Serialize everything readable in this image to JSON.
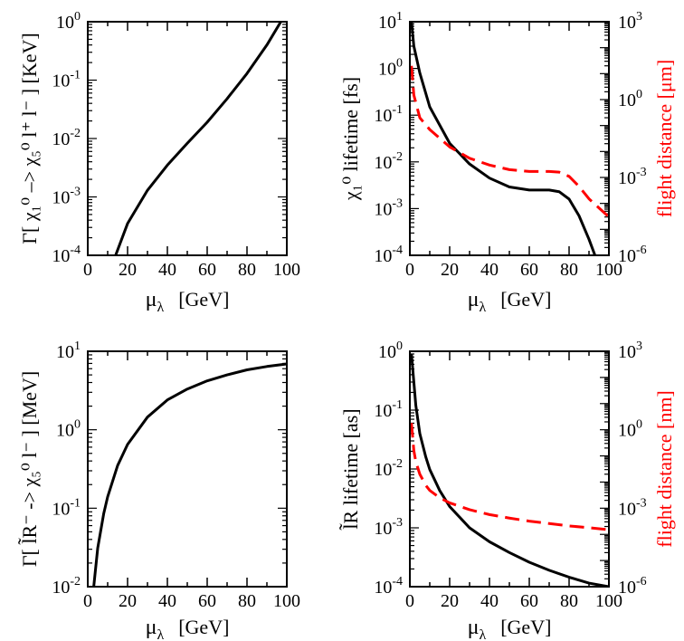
{
  "chart_data": [
    {
      "id": "tl",
      "type": "line",
      "ylabel": "Γ[ χ₁⁰ –> χ₅⁰ l⁺ l⁻ ]  [KeV]",
      "xlabel": "μλ [GeV]",
      "x_axis": {
        "label_main": "μ",
        "label_sub": "λ",
        "label_unit": "[GeV]",
        "range": [
          0,
          100
        ],
        "ticks": [
          0,
          20,
          40,
          60,
          80,
          100
        ],
        "tick_labels": [
          "0",
          "20",
          "40",
          "60",
          "80",
          "100"
        ]
      },
      "y_axis": {
        "scale": "log",
        "range": [
          0.0001,
          1
        ],
        "ticks": [
          0.0001,
          0.001,
          0.01,
          0.1,
          1
        ],
        "tick_labels": [
          {
            "base": "10",
            "exp": "-4"
          },
          {
            "base": "10",
            "exp": "-3"
          },
          {
            "base": "10",
            "exp": "-2"
          },
          {
            "base": "10",
            "exp": "-1"
          },
          {
            "base": "10",
            "exp": "0"
          }
        ]
      },
      "series": [
        {
          "name": "decay width",
          "color": "#000000",
          "dashed": false,
          "x": [
            14,
            20,
            30,
            40,
            50,
            60,
            70,
            80,
            90,
            97
          ],
          "values": [
            0.0001,
            0.00035,
            0.0013,
            0.0035,
            0.0083,
            0.019,
            0.048,
            0.13,
            0.4,
            1.0
          ]
        }
      ]
    },
    {
      "id": "tr",
      "type": "line",
      "ylabel": "χ₁⁰ lifetime [fs]",
      "xlabel": "μλ [GeV]",
      "x_axis": {
        "label_main": "μ",
        "label_sub": "λ",
        "label_unit": "[GeV]",
        "range": [
          0,
          100
        ],
        "ticks": [
          0,
          20,
          40,
          60,
          80,
          100
        ],
        "tick_labels": [
          "0",
          "20",
          "40",
          "60",
          "80",
          "100"
        ]
      },
      "y_axis": {
        "scale": "log",
        "range": [
          0.0001,
          10
        ],
        "ticks": [
          0.0001,
          0.001,
          0.01,
          0.1,
          1,
          10
        ],
        "tick_labels": [
          {
            "base": "10",
            "exp": "-4"
          },
          {
            "base": "10",
            "exp": "-3"
          },
          {
            "base": "10",
            "exp": "-2"
          },
          {
            "base": "10",
            "exp": "-1"
          },
          {
            "base": "10",
            "exp": "0"
          },
          {
            "base": "10",
            "exp": "1"
          }
        ]
      },
      "y2_axis": {
        "label": "flight distance [μm]",
        "scale": "log",
        "range": [
          1e-06,
          1000
        ],
        "ticks": [
          1e-06,
          0.001,
          1,
          1000
        ],
        "tick_labels": [
          {
            "base": "10",
            "exp": "-6"
          },
          {
            "base": "10",
            "exp": "-3"
          },
          {
            "base": "10",
            "exp": "0"
          },
          {
            "base": "10",
            "exp": "3"
          }
        ]
      },
      "series": [
        {
          "name": "lifetime",
          "color": "#000000",
          "dashed": false,
          "axis": "left",
          "x": [
            0.8,
            2,
            5,
            10,
            20,
            30,
            40,
            50,
            60,
            70,
            75,
            80,
            85,
            90,
            93
          ],
          "values": [
            10,
            3.0,
            0.8,
            0.15,
            0.025,
            0.009,
            0.0045,
            0.0029,
            0.0025,
            0.0025,
            0.0023,
            0.0016,
            0.0007,
            0.00022,
            0.0001
          ]
        },
        {
          "name": "flight distance",
          "color": "#ff0000",
          "dashed": true,
          "axis": "right",
          "x": [
            0.8,
            2,
            5,
            10,
            20,
            30,
            40,
            50,
            60,
            70,
            75,
            80,
            85,
            90,
            100
          ],
          "values": [
            20,
            1.5,
            0.2,
            0.07,
            0.015,
            0.0055,
            0.003,
            0.002,
            0.0017,
            0.0017,
            0.0016,
            0.0011,
            0.00045,
            0.00015,
            3e-05
          ]
        }
      ]
    },
    {
      "id": "bl",
      "type": "line",
      "ylabel": "Γ[ l̃R⁻ -> χ₅⁰ l⁻ ]  [MeV]",
      "xlabel": "μλ [GeV]",
      "x_axis": {
        "label_main": "μ",
        "label_sub": "λ",
        "label_unit": "[GeV]",
        "range": [
          0,
          100
        ],
        "ticks": [
          0,
          20,
          40,
          60,
          80,
          100
        ],
        "tick_labels": [
          "0",
          "20",
          "40",
          "60",
          "80",
          "100"
        ]
      },
      "y_axis": {
        "scale": "log",
        "range": [
          0.01,
          10
        ],
        "ticks": [
          0.01,
          0.1,
          1,
          10
        ],
        "tick_labels": [
          {
            "base": "10",
            "exp": "-2"
          },
          {
            "base": "10",
            "exp": "-1"
          },
          {
            "base": "10",
            "exp": "0"
          },
          {
            "base": "10",
            "exp": "1"
          }
        ]
      },
      "series": [
        {
          "name": "decay width",
          "color": "#000000",
          "dashed": false,
          "x": [
            3,
            5,
            8,
            10,
            15,
            20,
            30,
            40,
            50,
            60,
            70,
            80,
            90,
            100
          ],
          "values": [
            0.01,
            0.031,
            0.085,
            0.14,
            0.35,
            0.65,
            1.45,
            2.4,
            3.3,
            4.2,
            5.0,
            5.8,
            6.4,
            6.9
          ]
        }
      ]
    },
    {
      "id": "br",
      "type": "line",
      "ylabel": "l̃R lifetime [as]",
      "xlabel": "μλ [GeV]",
      "x_axis": {
        "label_main": "μ",
        "label_sub": "λ",
        "label_unit": "[GeV]",
        "range": [
          0,
          100
        ],
        "ticks": [
          0,
          20,
          40,
          60,
          80,
          100
        ],
        "tick_labels": [
          "0",
          "20",
          "40",
          "60",
          "80",
          "100"
        ]
      },
      "y_axis": {
        "scale": "log",
        "range": [
          0.0001,
          1
        ],
        "ticks": [
          0.0001,
          0.001,
          0.01,
          0.1,
          1
        ],
        "tick_labels": [
          {
            "base": "10",
            "exp": "-4"
          },
          {
            "base": "10",
            "exp": "-3"
          },
          {
            "base": "10",
            "exp": "-2"
          },
          {
            "base": "10",
            "exp": "-1"
          },
          {
            "base": "10",
            "exp": "0"
          }
        ]
      },
      "y2_axis": {
        "label": "flight distance [nm]",
        "scale": "log",
        "range": [
          1e-06,
          1000
        ],
        "ticks": [
          1e-06,
          0.001,
          1,
          1000
        ],
        "tick_labels": [
          {
            "base": "10",
            "exp": "-6"
          },
          {
            "base": "10",
            "exp": "-3"
          },
          {
            "base": "10",
            "exp": "0"
          },
          {
            "base": "10",
            "exp": "3"
          }
        ]
      },
      "series": [
        {
          "name": "lifetime",
          "color": "#000000",
          "dashed": false,
          "axis": "left",
          "x": [
            0.8,
            2,
            3,
            5,
            8,
            10,
            15,
            20,
            30,
            40,
            50,
            60,
            70,
            80,
            90,
            100
          ],
          "values": [
            0.9,
            0.3,
            0.12,
            0.04,
            0.016,
            0.0098,
            0.0043,
            0.0023,
            0.001,
            0.00058,
            0.00038,
            0.00026,
            0.00019,
            0.000145,
            0.000115,
            0.0001
          ]
        },
        {
          "name": "flight distance",
          "color": "#ff0000",
          "dashed": true,
          "axis": "right",
          "x": [
            0.8,
            2,
            3,
            5,
            8,
            10,
            15,
            20,
            30,
            40,
            50,
            60,
            70,
            80,
            90,
            100
          ],
          "values": [
            1.8,
            0.16,
            0.06,
            0.02,
            0.0075,
            0.0048,
            0.0025,
            0.0016,
            0.00088,
            0.00057,
            0.00042,
            0.00032,
            0.00026,
            0.00021,
            0.00018,
            0.00015
          ]
        }
      ]
    }
  ]
}
